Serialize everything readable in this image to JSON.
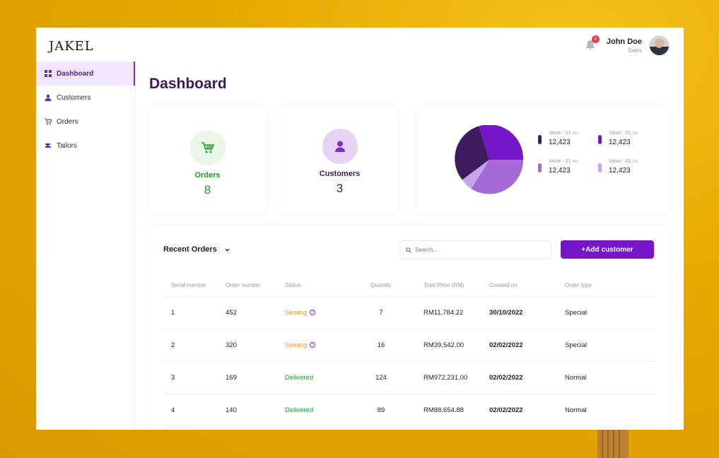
{
  "app": {
    "logo": "JAKEL"
  },
  "user": {
    "name": "John Doe",
    "role": "Sales",
    "notification_count": "0"
  },
  "sidebar": {
    "items": [
      {
        "label": "Dashboard",
        "icon": "grid-icon",
        "active": true
      },
      {
        "label": "Customers",
        "icon": "user-icon",
        "active": false
      },
      {
        "label": "Orders",
        "icon": "cart-icon",
        "active": false
      },
      {
        "label": "Tailors",
        "icon": "sewing-machine-icon",
        "active": false
      }
    ]
  },
  "page": {
    "title": "Dashboard"
  },
  "stats": {
    "orders": {
      "label": "Orders",
      "value": "8",
      "color": "#1f9a2a",
      "icon": "cart-icon"
    },
    "customers": {
      "label": "Customers",
      "value": "3",
      "color": "#3a1a57",
      "icon": "user-icon"
    }
  },
  "pie": {
    "legend": [
      {
        "label": "Value - 01",
        "unit": "(%)",
        "value": "12,423",
        "color": "#3f1a5c"
      },
      {
        "label": "Value - 01",
        "unit": "(%)",
        "value": "12,423",
        "color": "#7516c8"
      },
      {
        "label": "Value - 01",
        "unit": "(%)",
        "value": "12,423",
        "color": "#a56ad8"
      },
      {
        "label": "Value - 01",
        "unit": "(%)",
        "value": "12,423",
        "color": "#c7a3ea"
      }
    ]
  },
  "orders": {
    "title": "Recent Orders",
    "search_placeholder": "Search...",
    "add_label": "+Add customer",
    "columns": [
      "Serial number",
      "Order number",
      "Status",
      "Quantity",
      "Total Price (RM)",
      "Created on",
      "Order type"
    ],
    "rows": [
      {
        "serial": "1",
        "order": "452",
        "status": "Sewing",
        "qty": "7",
        "price": "RM11,784.22",
        "created": "30/10/2022",
        "type": "Special"
      },
      {
        "serial": "2",
        "order": "320",
        "status": "Sewing",
        "qty": "16",
        "price": "RM39,542.00",
        "created": "02/02/2022",
        "type": "Special"
      },
      {
        "serial": "3",
        "order": "169",
        "status": "Delivered",
        "qty": "124",
        "price": "RM972,231.00",
        "created": "02/02/2022",
        "type": "Normal"
      },
      {
        "serial": "4",
        "order": "140",
        "status": "Delivered",
        "qty": "89",
        "price": "RM88,654.88",
        "created": "02/02/2022",
        "type": "Normal"
      }
    ]
  }
}
